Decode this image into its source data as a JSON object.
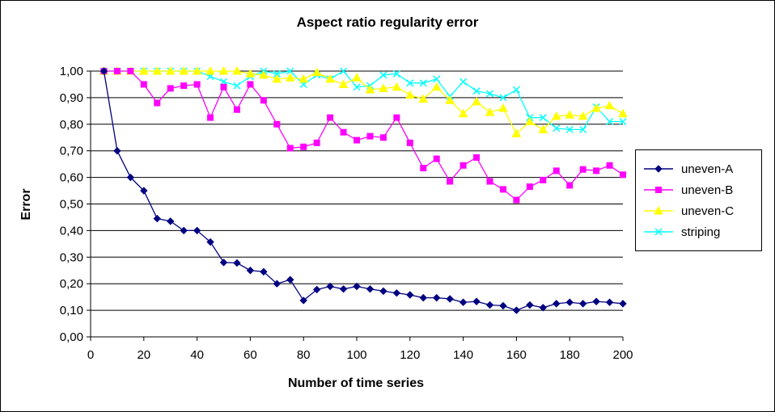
{
  "chart_data": {
    "type": "line",
    "title": "Aspect ratio regularity error",
    "xlabel": "Number of time series",
    "ylabel": "Error",
    "xlim": [
      0,
      200
    ],
    "ylim": [
      0,
      1
    ],
    "xticks": [
      "0",
      "20",
      "40",
      "60",
      "80",
      "100",
      "120",
      "140",
      "160",
      "180",
      "200"
    ],
    "yticks": [
      "0,00",
      "0,10",
      "0,20",
      "0,30",
      "0,40",
      "0,50",
      "0,60",
      "0,70",
      "0,80",
      "0,90",
      "1,00"
    ],
    "grid": "horizontal",
    "legend_position": "right",
    "x": [
      5,
      10,
      15,
      20,
      25,
      30,
      35,
      40,
      45,
      50,
      55,
      60,
      65,
      70,
      75,
      80,
      85,
      90,
      95,
      100,
      105,
      110,
      115,
      120,
      125,
      130,
      135,
      140,
      145,
      150,
      155,
      160,
      165,
      170,
      175,
      180,
      185,
      190,
      195,
      200
    ],
    "series": [
      {
        "name": "uneven-A",
        "color": "#000080",
        "marker": "diamond",
        "values": [
          1.0,
          0.7,
          0.6,
          0.55,
          0.445,
          0.435,
          0.4,
          0.4,
          0.357,
          0.28,
          0.278,
          0.25,
          0.245,
          0.2,
          0.215,
          0.137,
          0.178,
          0.19,
          0.18,
          0.19,
          0.18,
          0.172,
          0.165,
          0.158,
          0.147,
          0.147,
          0.143,
          0.13,
          0.133,
          0.12,
          0.117,
          0.1,
          0.12,
          0.11,
          0.125,
          0.13,
          0.125,
          0.133,
          0.13,
          0.125
        ]
      },
      {
        "name": "uneven-B",
        "color": "#ff00ff",
        "marker": "square",
        "values": [
          1.0,
          1.0,
          1.0,
          0.95,
          0.88,
          0.935,
          0.945,
          0.95,
          0.825,
          0.94,
          0.855,
          0.95,
          0.89,
          0.8,
          0.71,
          0.715,
          0.73,
          0.825,
          0.77,
          0.74,
          0.755,
          0.75,
          0.825,
          0.73,
          0.635,
          0.67,
          0.585,
          0.645,
          0.675,
          0.585,
          0.555,
          0.515,
          0.565,
          0.59,
          0.625,
          0.57,
          0.63,
          0.625,
          0.645,
          0.61
        ]
      },
      {
        "name": "uneven-C",
        "color": "#ffff00",
        "marker": "triangle",
        "values": [
          1.0,
          1.0,
          1.0,
          1.0,
          1.0,
          1.0,
          1.0,
          1.0,
          1.0,
          1.0,
          1.0,
          0.99,
          0.985,
          0.97,
          0.975,
          0.97,
          0.995,
          0.97,
          0.95,
          0.975,
          0.93,
          0.935,
          0.94,
          0.91,
          0.895,
          0.94,
          0.89,
          0.84,
          0.885,
          0.845,
          0.86,
          0.765,
          0.81,
          0.78,
          0.83,
          0.835,
          0.83,
          0.86,
          0.87,
          0.84
        ]
      },
      {
        "name": "striping",
        "color": "#00ffff",
        "marker": "x",
        "values": [
          1.0,
          1.0,
          1.0,
          1.0,
          1.0,
          1.0,
          1.0,
          1.0,
          0.98,
          0.96,
          0.945,
          0.98,
          1.0,
          0.99,
          1.0,
          0.95,
          0.985,
          0.97,
          1.0,
          0.94,
          0.945,
          0.985,
          0.99,
          0.955,
          0.955,
          0.97,
          0.905,
          0.96,
          0.925,
          0.915,
          0.9,
          0.93,
          0.825,
          0.825,
          0.785,
          0.78,
          0.78,
          0.865,
          0.81,
          0.81
        ]
      }
    ]
  }
}
